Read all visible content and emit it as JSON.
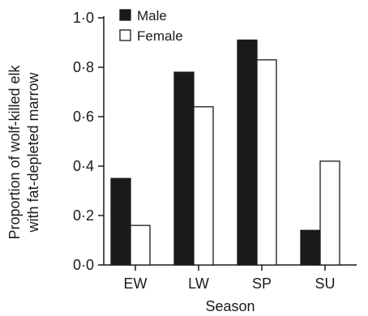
{
  "chart_data": {
    "type": "bar",
    "title": "",
    "xlabel": "Season",
    "ylabel_lines": [
      "Proportion of wolf-killed elk",
      "with fat-depleted marrow"
    ],
    "categories": [
      "EW",
      "LW",
      "SP",
      "SU"
    ],
    "series": [
      {
        "name": "Male",
        "values": [
          0.35,
          0.78,
          0.91,
          0.14
        ],
        "fill": "#1a1a1a"
      },
      {
        "name": "Female",
        "values": [
          0.16,
          0.64,
          0.83,
          0.42
        ],
        "fill": "#ffffff"
      }
    ],
    "ylim": [
      0,
      1.0
    ],
    "yticks": [
      "0·0",
      "0·2",
      "0·4",
      "0·6",
      "0·8",
      "1·0"
    ],
    "ytick_values": [
      0,
      0.2,
      0.4,
      0.6,
      0.8,
      1.0
    ],
    "grid": false,
    "legend_position": "top-left"
  }
}
